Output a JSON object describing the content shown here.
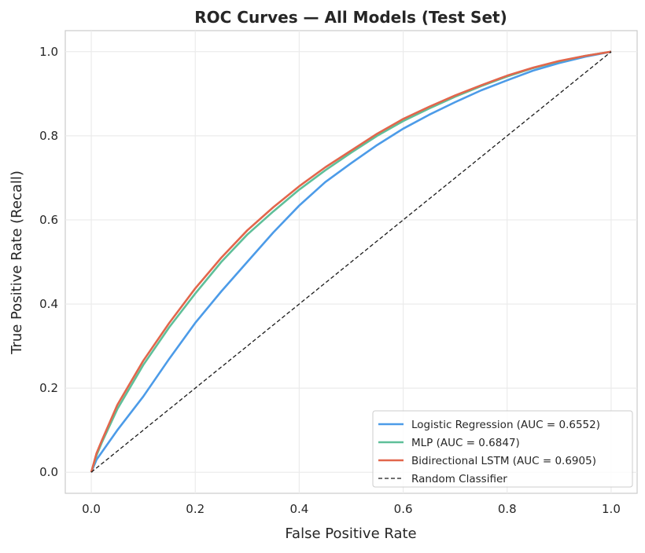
{
  "chart_data": {
    "type": "line",
    "title": "ROC Curves — All Models (Test Set)",
    "xlabel": "False Positive Rate",
    "ylabel": "True Positive Rate (Recall)",
    "xlim": [
      -0.05,
      1.05
    ],
    "ylim": [
      -0.05,
      1.05
    ],
    "xticks": [
      "0.0",
      "0.2",
      "0.4",
      "0.6",
      "0.8",
      "1.0"
    ],
    "yticks": [
      "0.0",
      "0.2",
      "0.4",
      "0.6",
      "0.8",
      "1.0"
    ],
    "grid": true,
    "legend_position": "bottom-right",
    "series": [
      {
        "name": "Logistic Regression  (AUC = 0.6552)",
        "color": "#4c9be8",
        "dash": false,
        "x": [
          0,
          0.01,
          0.05,
          0.1,
          0.15,
          0.2,
          0.25,
          0.3,
          0.35,
          0.4,
          0.45,
          0.5,
          0.55,
          0.6,
          0.65,
          0.7,
          0.75,
          0.8,
          0.85,
          0.9,
          0.95,
          1.0
        ],
        "y": [
          0,
          0.03,
          0.1,
          0.18,
          0.27,
          0.355,
          0.43,
          0.5,
          0.57,
          0.634,
          0.69,
          0.735,
          0.778,
          0.817,
          0.85,
          0.88,
          0.908,
          0.932,
          0.955,
          0.973,
          0.988,
          1.0
        ]
      },
      {
        "name": "MLP  (AUC = 0.6847)",
        "color": "#5fbf99",
        "dash": false,
        "x": [
          0,
          0.01,
          0.02,
          0.05,
          0.1,
          0.15,
          0.2,
          0.25,
          0.3,
          0.35,
          0.4,
          0.45,
          0.5,
          0.55,
          0.6,
          0.65,
          0.7,
          0.75,
          0.8,
          0.85,
          0.9,
          0.95,
          1.0
        ],
        "y": [
          0,
          0.04,
          0.07,
          0.15,
          0.255,
          0.345,
          0.425,
          0.5,
          0.565,
          0.62,
          0.672,
          0.718,
          0.76,
          0.8,
          0.835,
          0.865,
          0.893,
          0.918,
          0.941,
          0.961,
          0.977,
          0.99,
          1.0
        ]
      },
      {
        "name": "Bidirectional LSTM  (AUC = 0.6905)",
        "color": "#e2664c",
        "dash": false,
        "x": [
          0,
          0.01,
          0.02,
          0.05,
          0.1,
          0.15,
          0.2,
          0.25,
          0.3,
          0.35,
          0.4,
          0.45,
          0.5,
          0.55,
          0.6,
          0.65,
          0.7,
          0.75,
          0.8,
          0.85,
          0.9,
          0.95,
          1.0
        ],
        "y": [
          0,
          0.045,
          0.075,
          0.16,
          0.265,
          0.355,
          0.437,
          0.51,
          0.575,
          0.63,
          0.68,
          0.725,
          0.765,
          0.805,
          0.84,
          0.869,
          0.896,
          0.92,
          0.943,
          0.962,
          0.978,
          0.99,
          1.0
        ]
      },
      {
        "name": "Random Classifier",
        "color": "#1a1a1a",
        "dash": true,
        "x": [
          0,
          1
        ],
        "y": [
          0,
          1
        ]
      }
    ]
  }
}
